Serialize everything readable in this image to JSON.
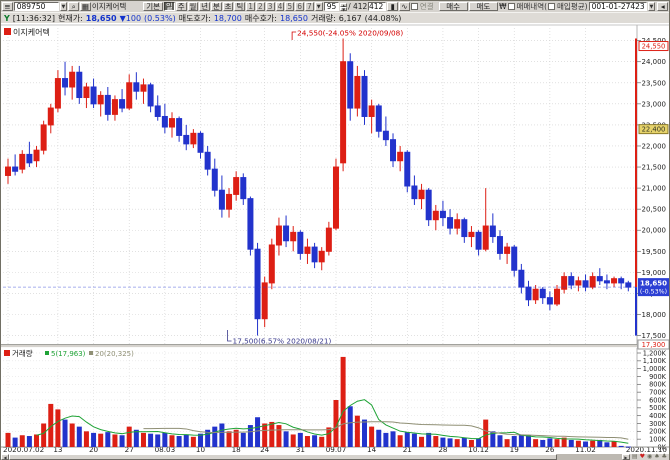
{
  "toolbar": {
    "menu_glyph": "≡",
    "stock_code": "089750",
    "search_label": "⌕",
    "grid_label": "▦",
    "stock_name": "이지케어텍",
    "tab_basic": "기본",
    "period_buttons": [
      "일",
      "주",
      "월",
      "년",
      "분",
      "초",
      "틱"
    ],
    "unit_buttons": [
      "1",
      "2",
      "3",
      "4",
      "5",
      "6",
      "7"
    ],
    "combo_arrow": "▼",
    "count_value": "95",
    "count_total": "/ 412",
    "count_box": "412",
    "icon_candle": "▮",
    "icon_line": "∿",
    "checkbox_link_label": "연결",
    "buy_label": "매수",
    "sell_label": "매도",
    "won_symbol": "₩",
    "checkbox_trades_label": "매매내역(",
    "checkbox_avg_label": "매입평균)",
    "account": "001-01-27423",
    "collapse_glyph": "◂"
  },
  "info_bar": {
    "prefix": "Y",
    "time": "[11:36:32]",
    "price_label": "현재가:",
    "price": "18,650",
    "change": "▼100",
    "change_pct": "(0.53%)",
    "ask_label": "매도호가:",
    "ask": "18,700",
    "bid_label": "매수호가:",
    "bid": "18,650",
    "volume_label": "거래량:",
    "volume": "6,167",
    "volume_pct": "(44.08%)"
  },
  "footer": {
    "icons": [
      {
        "name": "menu-icon",
        "glyph": "▤"
      },
      {
        "name": "heart-icon",
        "glyph": "♥"
      },
      {
        "name": "record-icon",
        "glyph": "◉"
      },
      {
        "name": "spade-icon",
        "glyph": "♠"
      },
      {
        "name": "club-icon",
        "glyph": "♣"
      }
    ]
  },
  "chart_data": {
    "type": "candlestick",
    "series_label": "이지케어텍",
    "price_axis": {
      "min": 17300,
      "max": 24800,
      "tick_step": 500,
      "ticks": [
        "24,500",
        "24,000",
        "23,500",
        "23,000",
        "22,500",
        "22,000",
        "21,500",
        "21,000",
        "20,500",
        "20,000",
        "19,500",
        "19,000",
        "18,500",
        "18,000",
        "17,500"
      ]
    },
    "volume_axis": {
      "min": 0,
      "max_k": 1200,
      "tick_step_k": 100,
      "ticks": [
        "1,200K",
        "1,100K",
        "1,000K",
        "900K",
        "800K",
        "700K",
        "600K",
        "500K",
        "400K",
        "300K",
        "200K",
        "100K",
        "0K"
      ]
    },
    "volume_legend": {
      "title": "거래량",
      "ma5": "5(17,963)",
      "ma20": "20(20,325)"
    },
    "annotations": {
      "high": {
        "index": 47,
        "price": 24550,
        "text": "24,550(-24.05% 2020/09/08)"
      },
      "low": {
        "index": 35,
        "price": 17500,
        "text": "17,500(6.57% 2020/08/21)"
      }
    },
    "markers": {
      "high_box": "24,550",
      "avg_box": "22,400",
      "current_box": "18,650",
      "current_pct": "(-0.53%)",
      "current_price": 18650,
      "avg_price": 22400,
      "pane_min_box": "17,300",
      "last_date_label": "2020.11.10"
    },
    "colors": {
      "up": "#dd1f14",
      "down": "#2233cc",
      "ma5": "#1fa336",
      "ma20": "#8f8f74",
      "grid": "#cfcfcf",
      "current_box": "#2c3fd4",
      "axis_text": "#222222",
      "high_text": "#d40000",
      "low_text": "#3a3a8c"
    },
    "x_ticks": [
      [
        0,
        "2020.07.02"
      ],
      [
        7,
        "13"
      ],
      [
        12,
        "20"
      ],
      [
        17,
        "27"
      ],
      [
        22,
        "08.03"
      ],
      [
        27,
        "10"
      ],
      [
        32,
        "18"
      ],
      [
        36,
        "24"
      ],
      [
        41,
        "31"
      ],
      [
        46,
        "09.07"
      ],
      [
        51,
        "14"
      ],
      [
        56,
        "21"
      ],
      [
        61,
        "28"
      ],
      [
        66,
        "10.12"
      ],
      [
        71,
        "19"
      ],
      [
        76,
        "26"
      ],
      [
        81,
        "11.02"
      ]
    ],
    "candles": [
      [
        "07/02",
        21300,
        21700,
        21100,
        21500,
        180
      ],
      [
        "07/03",
        21500,
        21800,
        21300,
        21400,
        120
      ],
      [
        "07/06",
        21450,
        21900,
        21350,
        21800,
        150
      ],
      [
        "07/07",
        21800,
        22100,
        21500,
        21600,
        140
      ],
      [
        "07/08",
        21650,
        22000,
        21500,
        21900,
        160
      ],
      [
        "07/09",
        21900,
        22600,
        21800,
        22500,
        300
      ],
      [
        "07/10",
        22500,
        23000,
        22300,
        22900,
        550
      ],
      [
        "07/13",
        22900,
        23800,
        22800,
        23600,
        480
      ],
      [
        "07/14",
        23600,
        24000,
        23200,
        23400,
        350
      ],
      [
        "07/15",
        23400,
        23900,
        23100,
        23750,
        300
      ],
      [
        "07/16",
        23750,
        23900,
        23000,
        23150,
        260
      ],
      [
        "07/17",
        23150,
        23500,
        22900,
        23400,
        200
      ],
      [
        "07/20",
        23400,
        23600,
        22900,
        23000,
        180
      ],
      [
        "07/21",
        23000,
        23300,
        22700,
        23200,
        170
      ],
      [
        "07/22",
        23200,
        23400,
        22600,
        22750,
        190
      ],
      [
        "07/23",
        22750,
        23200,
        22600,
        23100,
        160
      ],
      [
        "07/24",
        23100,
        23350,
        22800,
        22900,
        150
      ],
      [
        "07/27",
        22900,
        23700,
        22850,
        23500,
        260
      ],
      [
        "07/28",
        23500,
        23750,
        23100,
        23300,
        220
      ],
      [
        "07/29",
        23300,
        23600,
        23000,
        23450,
        180
      ],
      [
        "07/30",
        23450,
        23500,
        22800,
        22950,
        170
      ],
      [
        "07/31",
        22950,
        23200,
        22600,
        22700,
        160
      ],
      [
        "08/03",
        22700,
        23000,
        22300,
        22450,
        180
      ],
      [
        "08/04",
        22450,
        22800,
        22200,
        22650,
        150
      ],
      [
        "08/05",
        22650,
        22700,
        22100,
        22250,
        140
      ],
      [
        "08/06",
        22250,
        22500,
        21900,
        22050,
        160
      ],
      [
        "08/07",
        22050,
        22400,
        21950,
        22300,
        130
      ],
      [
        "08/10",
        22300,
        22350,
        21700,
        21850,
        170
      ],
      [
        "08/11",
        21850,
        22000,
        21300,
        21450,
        220
      ],
      [
        "08/12",
        21450,
        21700,
        20800,
        20950,
        260
      ],
      [
        "08/13",
        20950,
        21300,
        20300,
        20500,
        300
      ],
      [
        "08/14",
        20500,
        21000,
        20300,
        20850,
        200
      ],
      [
        "08/18",
        20850,
        21400,
        20700,
        21250,
        220
      ],
      [
        "08/19",
        21250,
        21350,
        20600,
        20750,
        180
      ],
      [
        "08/20",
        20750,
        20800,
        19400,
        19550,
        280
      ],
      [
        "08/21",
        19550,
        19700,
        17500,
        17900,
        380
      ],
      [
        "08/24",
        17900,
        18900,
        17700,
        18750,
        300
      ],
      [
        "08/25",
        18750,
        19800,
        18600,
        19650,
        320
      ],
      [
        "08/26",
        19650,
        20300,
        19400,
        20100,
        280
      ],
      [
        "08/27",
        20100,
        20350,
        19600,
        19750,
        200
      ],
      [
        "08/28",
        19750,
        20100,
        19500,
        19950,
        160
      ],
      [
        "08/31",
        19950,
        20000,
        19300,
        19450,
        180
      ],
      [
        "09/01",
        19450,
        19800,
        19200,
        19600,
        140
      ],
      [
        "09/02",
        19600,
        19700,
        19100,
        19250,
        150
      ],
      [
        "09/03",
        19250,
        19600,
        19050,
        19500,
        130
      ],
      [
        "09/04",
        19500,
        20200,
        19400,
        20050,
        250
      ],
      [
        "09/07",
        20050,
        21700,
        20000,
        21500,
        600
      ],
      [
        "09/08",
        21600,
        24550,
        21400,
        24000,
        1150
      ],
      [
        "09/09",
        24000,
        24200,
        22600,
        22900,
        520
      ],
      [
        "09/10",
        22900,
        23900,
        22700,
        23650,
        400
      ],
      [
        "09/11",
        23650,
        23800,
        22500,
        22700,
        350
      ],
      [
        "09/14",
        22700,
        23100,
        22300,
        22950,
        260
      ],
      [
        "09/15",
        22950,
        23000,
        22200,
        22350,
        220
      ],
      [
        "09/16",
        22350,
        22700,
        22000,
        22150,
        180
      ],
      [
        "09/17",
        22150,
        22300,
        21500,
        21650,
        200
      ],
      [
        "09/18",
        21650,
        22000,
        21400,
        21850,
        150
      ],
      [
        "09/21",
        21850,
        21900,
        20900,
        21050,
        190
      ],
      [
        "09/22",
        21050,
        21300,
        20600,
        20750,
        170
      ],
      [
        "09/23",
        20750,
        21100,
        20500,
        20950,
        130
      ],
      [
        "09/24",
        20950,
        21000,
        20100,
        20250,
        180
      ],
      [
        "09/25",
        20250,
        20600,
        20000,
        20450,
        140
      ],
      [
        "09/28",
        20450,
        20700,
        20100,
        20300,
        120
      ],
      [
        "10/05",
        20300,
        20500,
        19900,
        20050,
        110
      ],
      [
        "10/06",
        20050,
        20400,
        19900,
        20250,
        100
      ],
      [
        "10/07",
        20250,
        20300,
        19700,
        19850,
        120
      ],
      [
        "10/08",
        19850,
        20100,
        19600,
        19950,
        90
      ],
      [
        "10/12",
        19950,
        20000,
        19400,
        19550,
        110
      ],
      [
        "10/13",
        19550,
        21000,
        19500,
        20100,
        350
      ],
      [
        "10/14",
        20100,
        20400,
        19700,
        19850,
        200
      ],
      [
        "10/15",
        19850,
        20000,
        19300,
        19450,
        150
      ],
      [
        "10/16",
        19450,
        19700,
        19200,
        19600,
        100
      ],
      [
        "10/19",
        19600,
        19650,
        18900,
        19050,
        140
      ],
      [
        "10/20",
        19050,
        19200,
        18500,
        18650,
        160
      ],
      [
        "10/21",
        18650,
        18800,
        18200,
        18350,
        150
      ],
      [
        "10/22",
        18350,
        18700,
        18250,
        18600,
        100
      ],
      [
        "10/23",
        18600,
        18650,
        18250,
        18400,
        90
      ],
      [
        "10/26",
        18400,
        18550,
        18100,
        18250,
        110
      ],
      [
        "10/27",
        18250,
        18700,
        18200,
        18600,
        100
      ],
      [
        "10/28",
        18600,
        19000,
        18500,
        18900,
        120
      ],
      [
        "10/29",
        18900,
        19000,
        18600,
        18700,
        90
      ],
      [
        "10/30",
        18700,
        18900,
        18550,
        18800,
        80
      ],
      [
        "11/02",
        18800,
        18950,
        18550,
        18650,
        70
      ],
      [
        "11/03",
        18650,
        19000,
        18600,
        18900,
        80
      ],
      [
        "11/04",
        18900,
        19100,
        18700,
        18800,
        90
      ],
      [
        "11/05",
        18800,
        18950,
        18600,
        18750,
        60
      ],
      [
        "11/06",
        18750,
        18900,
        18650,
        18850,
        70
      ],
      [
        "11/09",
        18850,
        18900,
        18600,
        18750,
        14
      ],
      [
        "11/10",
        18750,
        18800,
        18550,
        18650,
        6
      ]
    ]
  }
}
